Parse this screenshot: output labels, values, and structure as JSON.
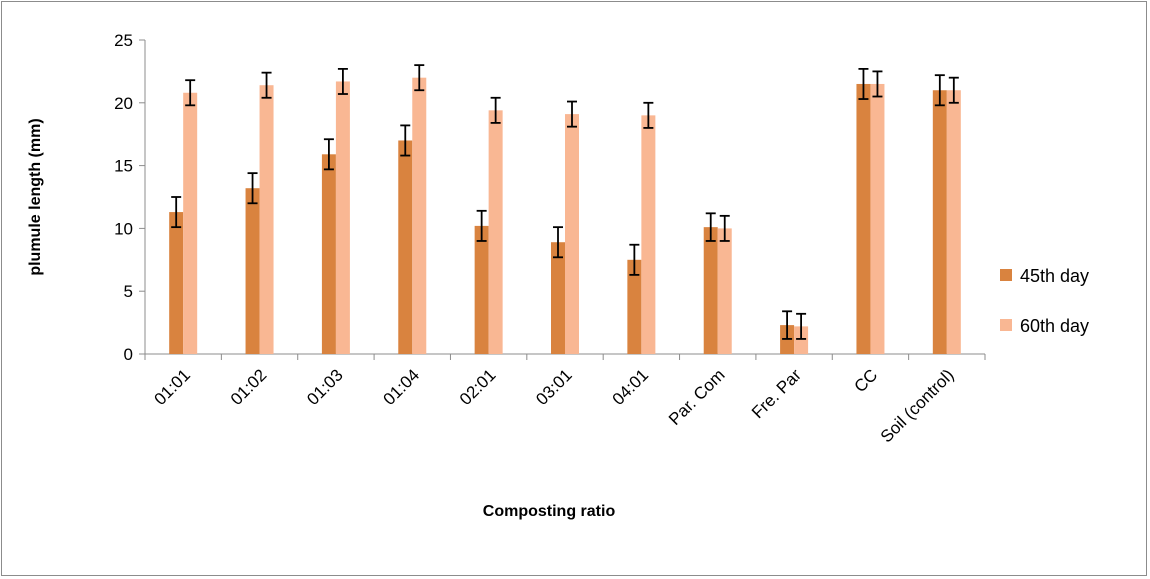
{
  "chart_data": {
    "type": "bar",
    "title": "",
    "xlabel": "Composting ratio",
    "ylabel": "plumule length (mm)",
    "ylim": [
      0,
      25
    ],
    "yticks": [
      0,
      5,
      10,
      15,
      20,
      25
    ],
    "grid": false,
    "legend_position": "right",
    "categories": [
      "01:01",
      "01:02",
      "01:03",
      "01:04",
      "02:01",
      "03:01",
      "04:01",
      "Par. Com",
      "Fre. Par",
      "CC",
      "Soil (control)"
    ],
    "series": [
      {
        "name": "45th day",
        "color": "#d9833f",
        "values": [
          11.3,
          13.2,
          15.9,
          17.0,
          10.2,
          8.9,
          7.5,
          10.1,
          2.3,
          21.5,
          21.0
        ],
        "errors": [
          1.2,
          1.2,
          1.2,
          1.2,
          1.2,
          1.2,
          1.2,
          1.1,
          1.1,
          1.2,
          1.2
        ]
      },
      {
        "name": "60th day",
        "color": "#f9b793",
        "values": [
          20.8,
          21.4,
          21.7,
          22.0,
          19.4,
          19.1,
          19.0,
          10.0,
          2.2,
          21.5,
          21.0
        ],
        "errors": [
          1.0,
          1.0,
          1.0,
          1.0,
          1.0,
          1.0,
          1.0,
          1.0,
          1.0,
          1.0,
          1.0
        ]
      }
    ]
  }
}
